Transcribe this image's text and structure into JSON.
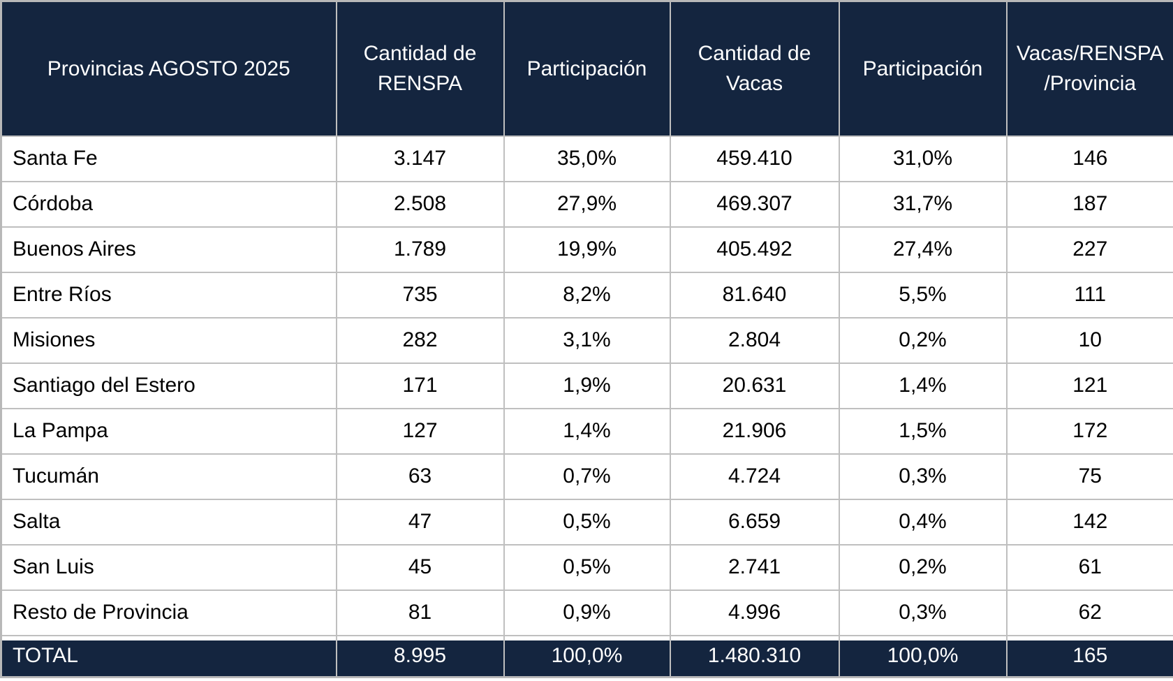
{
  "colors": {
    "header_bg": "#14253F",
    "header_text": "#FFFFFF",
    "row_bg": "#FFFFFF",
    "row_text": "#000000",
    "gridline": "#BFBFBF",
    "total_bg": "#14253F",
    "total_text": "#FFFFFF"
  },
  "header_display": [
    "Provincias AGOSTO 2025",
    "Cantidad de\nRENSPA",
    "Participación",
    "Cantidad de\nVacas",
    "Participación",
    "Vacas/RENSPA\n/Provincia"
  ],
  "chart_data": {
    "type": "table",
    "title": "Provincias AGOSTO 2025",
    "columns": [
      "Provincias AGOSTO 2025",
      "Cantidad de RENSPA",
      "Participación",
      "Cantidad de Vacas",
      "Participación",
      "Vacas/RENSPA/Provincia"
    ],
    "rows": [
      [
        "Santa Fe",
        "3.147",
        "35,0%",
        "459.410",
        "31,0%",
        "146"
      ],
      [
        "Córdoba",
        "2.508",
        "27,9%",
        "469.307",
        "31,7%",
        "187"
      ],
      [
        "Buenos Aires",
        "1.789",
        "19,9%",
        "405.492",
        "27,4%",
        "227"
      ],
      [
        "Entre Ríos",
        "735",
        "8,2%",
        "81.640",
        "5,5%",
        "111"
      ],
      [
        "Misiones",
        "282",
        "3,1%",
        "2.804",
        "0,2%",
        "10"
      ],
      [
        "Santiago del Estero",
        "171",
        "1,9%",
        "20.631",
        "1,4%",
        "121"
      ],
      [
        "La Pampa",
        "127",
        "1,4%",
        "21.906",
        "1,5%",
        "172"
      ],
      [
        "Tucumán",
        "63",
        "0,7%",
        "4.724",
        "0,3%",
        "75"
      ],
      [
        "Salta",
        "47",
        "0,5%",
        "6.659",
        "0,4%",
        "142"
      ],
      [
        "San Luis",
        "45",
        "0,5%",
        "2.741",
        "0,2%",
        "61"
      ],
      [
        "Resto de Provincia",
        "81",
        "0,9%",
        "4.996",
        "0,3%",
        "62"
      ]
    ],
    "total_row": [
      "TOTAL",
      "8.995",
      "100,0%",
      "1.480.310",
      "100,0%",
      "165"
    ]
  }
}
